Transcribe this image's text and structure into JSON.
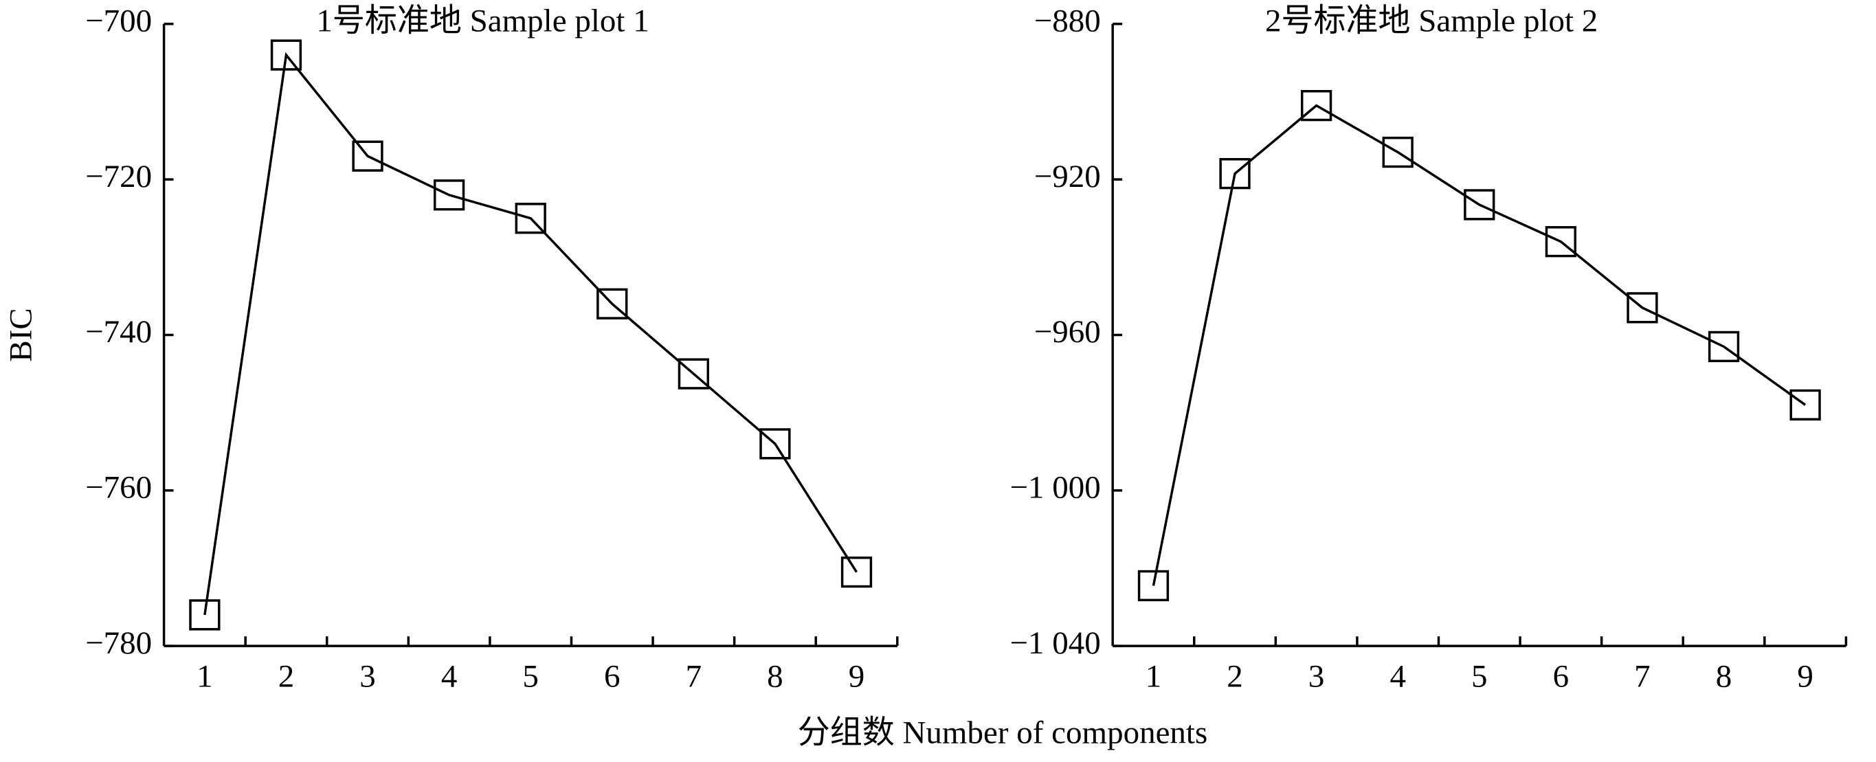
{
  "chart_data": [
    {
      "type": "line",
      "title": "1号标准地  Sample plot 1",
      "ylabel": "BIC",
      "xlabel": "分组数  Number of components",
      "categories": [
        "1",
        "2",
        "3",
        "4",
        "5",
        "6",
        "7",
        "8",
        "9"
      ],
      "series": [
        {
          "color": "#000000",
          "values": [
            -776,
            -704,
            -717,
            -722,
            -725,
            -736,
            -745,
            -754,
            -770.5
          ]
        }
      ],
      "ylim": [
        -780,
        -700
      ],
      "yticks": [
        {
          "value": -700,
          "label": "−700"
        },
        {
          "value": -720,
          "label": "−720"
        },
        {
          "value": -740,
          "label": "−740"
        },
        {
          "value": -760,
          "label": "−760"
        },
        {
          "value": -780,
          "label": "−780"
        }
      ]
    },
    {
      "type": "line",
      "title": "2号标准地  Sample plot 2",
      "categories": [
        "1",
        "2",
        "3",
        "4",
        "5",
        "6",
        "7",
        "8",
        "9"
      ],
      "series": [
        {
          "color": "#000000",
          "values": [
            -1024.5,
            -918.5,
            -901,
            -913,
            -926.5,
            -936,
            -953,
            -963,
            -978
          ]
        }
      ],
      "ylim": [
        -1040,
        -880
      ],
      "yticks": [
        {
          "value": -880,
          "label": "−880"
        },
        {
          "value": -920,
          "label": "−920"
        },
        {
          "value": -960,
          "label": "−960"
        },
        {
          "value": -1000,
          "label": "−1 000"
        },
        {
          "value": -1040,
          "label": "−1 040"
        }
      ]
    }
  ]
}
